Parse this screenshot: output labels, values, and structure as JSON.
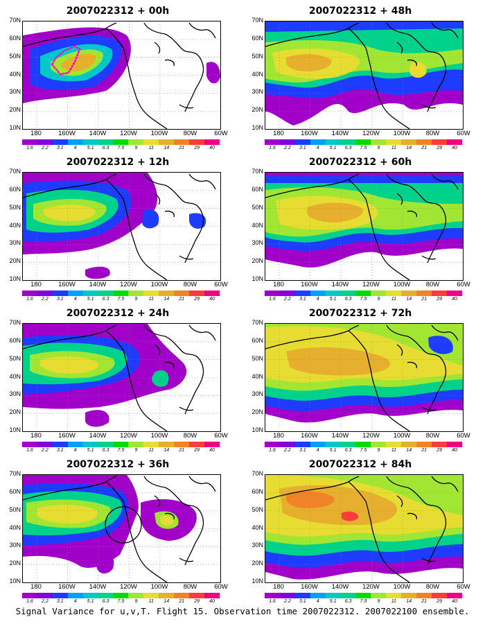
{
  "caption": "Signal Variance for u,v,T. Flight 15. Observation time 2007022312. 2007022100 ensemble.",
  "latitude_labels": [
    "70N",
    "60N",
    "50N",
    "40N",
    "30N",
    "20N",
    "10N"
  ],
  "longitude_labels": [
    "180",
    "160W",
    "140W",
    "120W",
    "100W",
    "80W",
    "60W"
  ],
  "colorbar": {
    "colors": [
      "#a000c8",
      "#8200dc",
      "#1e3cff",
      "#00a0ff",
      "#00c8c8",
      "#00d28c",
      "#00dc00",
      "#a0e632",
      "#e6dc32",
      "#e6af2d",
      "#f08228",
      "#fa3c3c",
      "#f00082"
    ],
    "labels": [
      "1.6",
      "2.2",
      "3.1",
      "4",
      "5.1",
      "6.3",
      "7.5",
      "9",
      "11",
      "14",
      "21",
      "29",
      "40"
    ]
  },
  "panels": [
    {
      "id": "p00",
      "title": "2007022312 + 00h"
    },
    {
      "id": "p48",
      "title": "2007022312 + 48h"
    },
    {
      "id": "p12",
      "title": "2007022312 + 12h"
    },
    {
      "id": "p60",
      "title": "2007022312 + 60h"
    },
    {
      "id": "p24",
      "title": "2007022312 + 24h"
    },
    {
      "id": "p72",
      "title": "2007022312 + 72h"
    },
    {
      "id": "p36",
      "title": "2007022312 + 36h"
    },
    {
      "id": "p84",
      "title": "2007022312 + 84h"
    }
  ]
}
